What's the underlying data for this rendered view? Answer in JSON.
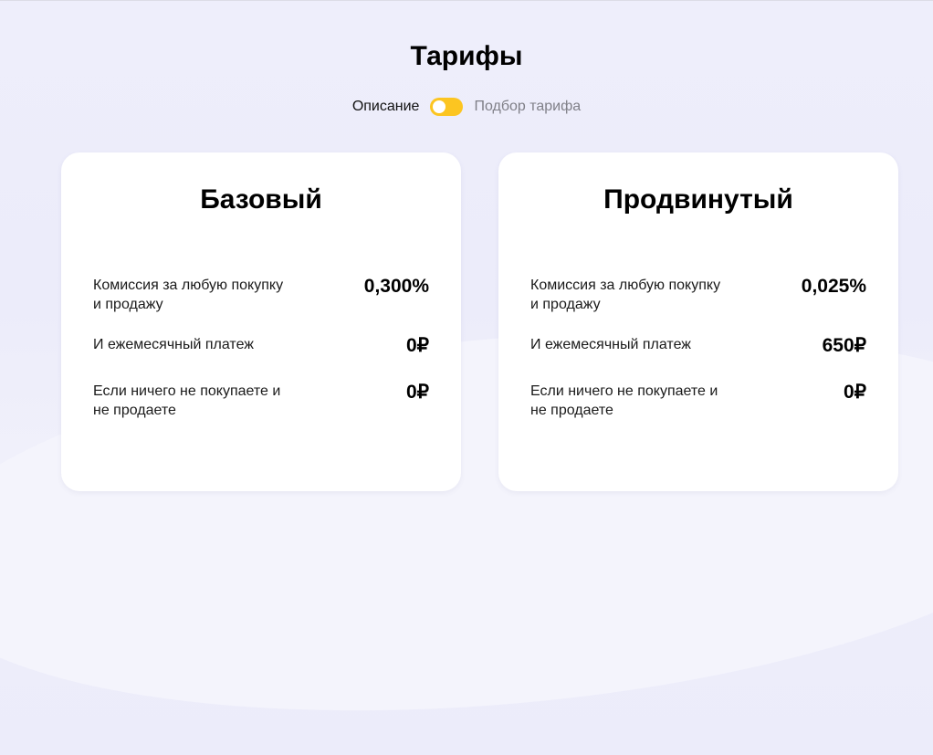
{
  "page": {
    "title": "Тарифы"
  },
  "switch": {
    "left_label": "Описание",
    "right_label": "Подбор тарифа",
    "accent": "#fcc521",
    "state": "Описание"
  },
  "plans": [
    {
      "name": "Базовый",
      "rows": [
        {
          "label": "Комиссия за любую покупку и продажу",
          "value": "0,300%"
        },
        {
          "label": "И ежемесячный платеж",
          "value": "0₽"
        },
        {
          "label": "Если ничего не покупаете и не продаете",
          "value": "0₽"
        }
      ]
    },
    {
      "name": "Продвинутый",
      "rows": [
        {
          "label": "Комиссия за любую покупку и продажу",
          "value": "0,025%"
        },
        {
          "label": "И ежемесячный платеж",
          "value": "650₽"
        },
        {
          "label": "Если ничего не покупаете и не продаете",
          "value": "0₽"
        }
      ]
    }
  ]
}
